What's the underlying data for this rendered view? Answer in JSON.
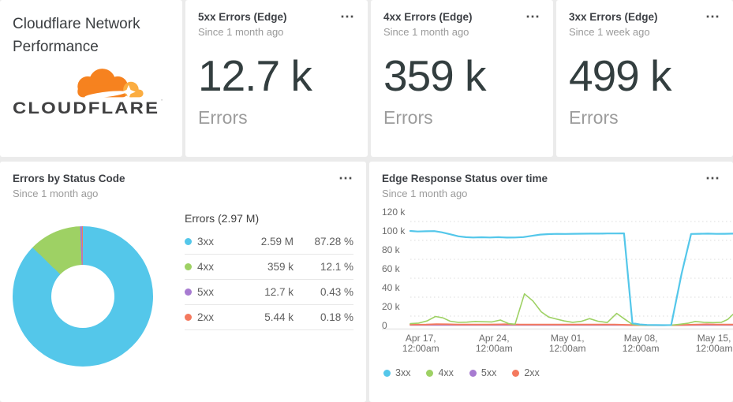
{
  "icons": {
    "more": "⋯"
  },
  "header": {
    "title": "Cloudflare Network Performance",
    "logo_text": "CLOUDFLARE",
    "logo_orange": "#f6821f",
    "logo_light_orange": "#fbad41",
    "logo_text_color": "#404041"
  },
  "stats": [
    {
      "title": "5xx Errors (Edge)",
      "subtitle": "Since 1 month ago",
      "value": "12.7 k",
      "unit": "Errors"
    },
    {
      "title": "4xx Errors (Edge)",
      "subtitle": "Since 1 month ago",
      "value": "359 k",
      "unit": "Errors"
    },
    {
      "title": "3xx Errors (Edge)",
      "subtitle": "Since 1 week ago",
      "value": "499 k",
      "unit": "Errors"
    }
  ],
  "pie_card": {
    "title": "Errors by Status Code",
    "subtitle": "Since 1 month ago"
  },
  "chart_card": {
    "title": "Edge Response Status over time",
    "subtitle": "Since 1 month ago"
  },
  "chart_data": [
    {
      "type": "pie",
      "title": "Errors by Status Code",
      "total_label": "Errors (2.97 M)",
      "slices": [
        {
          "label": "3xx",
          "value": 2590000,
          "value_label": "2.59 M",
          "pct": 87.28,
          "pct_label": "87.28 %",
          "color": "#54c7ea"
        },
        {
          "label": "4xx",
          "value": 359000,
          "value_label": "359 k",
          "pct": 12.1,
          "pct_label": "12.1 %",
          "color": "#9ed164"
        },
        {
          "label": "5xx",
          "value": 12700,
          "value_label": "12.7 k",
          "pct": 0.43,
          "pct_label": "0.43 %",
          "color": "#a77bd1"
        },
        {
          "label": "2xx",
          "value": 5440,
          "value_label": "5.44 k",
          "pct": 0.18,
          "pct_label": "0.18 %",
          "color": "#f4795e"
        }
      ]
    },
    {
      "type": "line",
      "title": "Edge Response Status over time",
      "xlabel": "",
      "ylabel": "",
      "x_range": [
        0,
        30.8
      ],
      "ylim": [
        0,
        120000
      ],
      "grid": "dotted-minor",
      "legend_position": "bottom-left",
      "yticks": [
        {
          "value": 0,
          "label": "0"
        },
        {
          "value": 20000,
          "label": "20 k"
        },
        {
          "value": 40000,
          "label": "40 k"
        },
        {
          "value": 60000,
          "label": "60 k"
        },
        {
          "value": 80000,
          "label": "80 k"
        },
        {
          "value": 100000,
          "label": "100 k"
        },
        {
          "value": 120000,
          "label": "120 k"
        }
      ],
      "minor_gridlines": [
        10000,
        30000,
        50000,
        70000,
        90000,
        110000
      ],
      "xticks": [
        {
          "day": 1,
          "lines": [
            "Apr 17,",
            "12:00am"
          ]
        },
        {
          "day": 8,
          "lines": [
            "Apr 24,",
            "12:00am"
          ]
        },
        {
          "day": 15,
          "lines": [
            "May 01,",
            "12:00am"
          ]
        },
        {
          "day": 22,
          "lines": [
            "May 08,",
            "12:00am"
          ]
        },
        {
          "day": 29,
          "lines": [
            "May 15,",
            "12:00am"
          ]
        }
      ],
      "series": [
        {
          "name": "3xx",
          "color": "#54c7ea",
          "width": 2.2,
          "z": 4,
          "points": [
            [
              0,
              100000
            ],
            [
              0.7,
              99400
            ],
            [
              1.5,
              99700
            ],
            [
              2.3,
              99800
            ],
            [
              3,
              98600
            ],
            [
              3.8,
              96500
            ],
            [
              4.6,
              94300
            ],
            [
              5.3,
              93400
            ],
            [
              6,
              93100
            ],
            [
              6.8,
              93300
            ],
            [
              7.6,
              93100
            ],
            [
              8.4,
              93400
            ],
            [
              9.2,
              93000
            ],
            [
              10,
              93100
            ],
            [
              10.8,
              93500
            ],
            [
              11.6,
              94800
            ],
            [
              12.4,
              96200
            ],
            [
              13.2,
              96700
            ],
            [
              14,
              96900
            ],
            [
              14.8,
              96800
            ],
            [
              15.6,
              97000
            ],
            [
              16.4,
              97100
            ],
            [
              17.2,
              97200
            ],
            [
              18,
              97200
            ],
            [
              18.8,
              97300
            ],
            [
              19.6,
              97300
            ],
            [
              20.4,
              97400
            ],
            [
              21.2,
              2500
            ],
            [
              21.9,
              1200
            ],
            [
              22.6,
              700
            ],
            [
              23.4,
              500
            ],
            [
              24.2,
              400
            ],
            [
              24.9,
              600
            ],
            [
              25.9,
              55000
            ],
            [
              26.8,
              96800
            ],
            [
              27.6,
              97000
            ],
            [
              28.4,
              97200
            ],
            [
              29.2,
              96900
            ],
            [
              30,
              97000
            ],
            [
              30.8,
              97200
            ]
          ]
        },
        {
          "name": "4xx",
          "color": "#9ed164",
          "width": 1.6,
          "z": 3,
          "points": [
            [
              0,
              2000
            ],
            [
              0.8,
              2600
            ],
            [
              1.6,
              4800
            ],
            [
              2.4,
              9600
            ],
            [
              3.1,
              8200
            ],
            [
              3.8,
              4600
            ],
            [
              4.6,
              3300
            ],
            [
              5.4,
              3600
            ],
            [
              6.2,
              4300
            ],
            [
              7,
              4000
            ],
            [
              7.8,
              3800
            ],
            [
              8.6,
              5800
            ],
            [
              9.4,
              2000
            ],
            [
              10,
              1400
            ],
            [
              10.9,
              33500
            ],
            [
              11.7,
              26000
            ],
            [
              12.5,
              14500
            ],
            [
              13.2,
              9000
            ],
            [
              13.9,
              7000
            ],
            [
              14.7,
              4800
            ],
            [
              15.5,
              3400
            ],
            [
              16.3,
              4400
            ],
            [
              17.1,
              7300
            ],
            [
              17.9,
              4600
            ],
            [
              18.8,
              3200
            ],
            [
              19.7,
              12800
            ],
            [
              20.5,
              6500
            ],
            [
              21.2,
              1200
            ],
            [
              22,
              400
            ],
            [
              23,
              250
            ],
            [
              24,
              250
            ],
            [
              24.9,
              300
            ],
            [
              25.7,
              1300
            ],
            [
              26.5,
              2400
            ],
            [
              27.2,
              4300
            ],
            [
              28,
              3400
            ],
            [
              28.9,
              3100
            ],
            [
              29.7,
              3400
            ],
            [
              30.3,
              6500
            ],
            [
              30.8,
              11800
            ]
          ]
        },
        {
          "name": "5xx",
          "color": "#a77bd1",
          "width": 1.4,
          "z": 1,
          "points": [
            [
              0,
              300
            ],
            [
              4,
              300
            ],
            [
              8,
              300
            ],
            [
              12,
              300
            ],
            [
              16,
              300
            ],
            [
              20,
              300
            ],
            [
              22,
              150
            ],
            [
              24,
              150
            ],
            [
              26,
              250
            ],
            [
              28,
              300
            ],
            [
              30.8,
              300
            ]
          ]
        },
        {
          "name": "2xx",
          "color": "#f4795e",
          "width": 2,
          "z": 2,
          "points": [
            [
              0,
              900
            ],
            [
              1.5,
              1100
            ],
            [
              2.5,
              1500
            ],
            [
              3.5,
              1300
            ],
            [
              4.5,
              1000
            ],
            [
              6,
              1000
            ],
            [
              7.5,
              1100
            ],
            [
              9,
              1300
            ],
            [
              10.5,
              1100
            ],
            [
              12,
              1000
            ],
            [
              13.5,
              1100
            ],
            [
              15,
              1000
            ],
            [
              16.5,
              1100
            ],
            [
              18,
              1000
            ],
            [
              19.5,
              1100
            ],
            [
              21,
              600
            ],
            [
              22.5,
              300
            ],
            [
              24,
              300
            ],
            [
              25.5,
              500
            ],
            [
              27,
              900
            ],
            [
              28.3,
              1300
            ],
            [
              29.3,
              1100
            ],
            [
              30.8,
              1000
            ]
          ]
        }
      ]
    }
  ]
}
